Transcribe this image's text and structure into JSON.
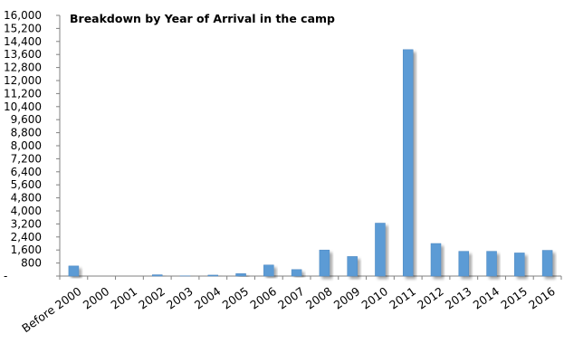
{
  "chart_data": {
    "type": "bar",
    "title": "Breakdown by Year of Arrival in the camp",
    "xlabel": "",
    "ylabel": "",
    "categories": [
      "Before 2000",
      "2000",
      "2001",
      "2002",
      "2003",
      "2004",
      "2005",
      "2006",
      "2007",
      "2008",
      "2009",
      "2010",
      "2011",
      "2012",
      "2013",
      "2014",
      "2015",
      "2016"
    ],
    "values": [
      620,
      0,
      0,
      80,
      20,
      60,
      150,
      680,
      400,
      1600,
      1200,
      3250,
      13900,
      2000,
      1520,
      1520,
      1420,
      1580
    ],
    "ylim": [
      0,
      16000
    ],
    "yticks": [
      0,
      800,
      1600,
      2400,
      3200,
      4000,
      4800,
      5600,
      6400,
      7200,
      8000,
      8800,
      9600,
      10400,
      11200,
      12000,
      12800,
      13600,
      14400,
      15200,
      16000
    ],
    "ytick_labels": [
      "-",
      "800",
      "1,600",
      "2,400",
      "3,200",
      "4,000",
      "4,800",
      "5,600",
      "6,400",
      "7,200",
      "8,000",
      "8,800",
      "9,600",
      "10,400",
      "11,200",
      "12,000",
      "12,800",
      "13,600",
      "14,400",
      "15,200",
      "16,000"
    ],
    "grid": false,
    "legend": "none",
    "colors": {
      "bar": "#5b9bd5",
      "bar_edge": "#4a86c0",
      "axis": "#808080",
      "text": "#000000"
    }
  }
}
